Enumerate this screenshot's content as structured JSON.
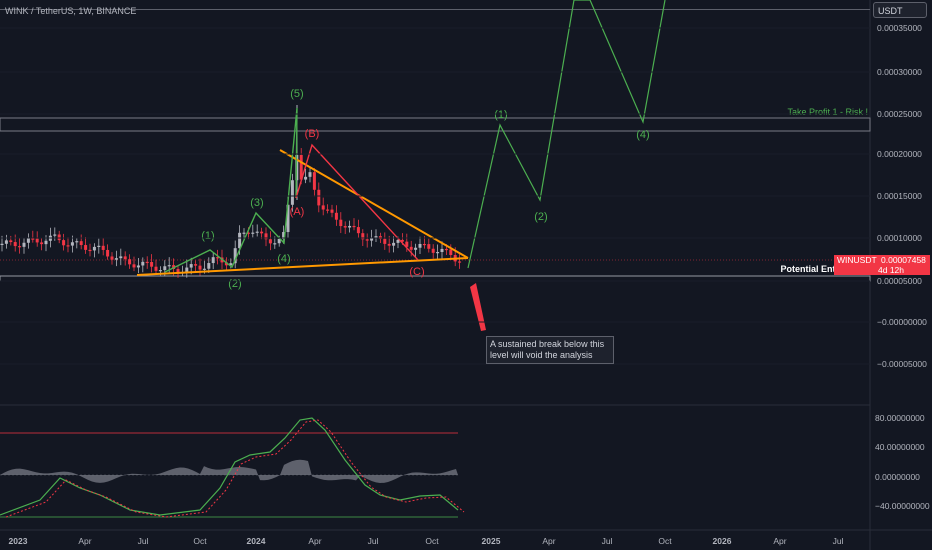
{
  "header": {
    "title": "WINK / TetherUS, 1W, BINANCE"
  },
  "currency_badge": "USDT",
  "colors": {
    "background": "#131722",
    "grid": "#1e222d",
    "up": "#b2b5be",
    "down": "#f23645",
    "wave_green": "#4caf50",
    "wave_red": "#f23645",
    "triangle_orange": "#ff9800",
    "macd_green": "#4caf50",
    "macd_signal": "#f23645",
    "histogram": "#787b86"
  },
  "main_axis_labels": [
    "0.00035000",
    "0.00030000",
    "0.00025000",
    "0.00020000",
    "0.00015000",
    "0.00010000",
    "0.00005000",
    "−0.00000000",
    "−0.00005000"
  ],
  "indicator_axis_labels": [
    "80.00000000",
    "40.00000000",
    "0.00000000",
    "−40.00000000"
  ],
  "time_labels": [
    "2023",
    "Apr",
    "Jul",
    "Oct",
    "2024",
    "Apr",
    "Jul",
    "Oct",
    "2025",
    "Apr",
    "Jul",
    "Oct",
    "2026",
    "Apr",
    "Jul"
  ],
  "wave_labels": {
    "w1": "(1)",
    "w2": "(2)",
    "w3": "(3)",
    "w4": "(4)",
    "w5": "(5)",
    "a": "(A)",
    "b": "(B)",
    "c": "(C)",
    "p1": "(1)",
    "p2": "(2)",
    "p4": "(4)"
  },
  "annotations": {
    "take_profit": "Take Profit 1 - Risk !",
    "entry_zone": "Potential Entry Zone",
    "callout": "A sustained break below this level will void the analysis"
  },
  "price_tag": {
    "symbol": "WINUSDT",
    "price": "0.00007458",
    "countdown": "4d 12h"
  },
  "chart_data": {
    "type": "line",
    "title": "WINK / TetherUS, 1W, BINANCE",
    "ylim": [
      -7.5e-05,
      0.00038
    ],
    "price_series_approx": [
      {
        "x": "2023-01",
        "y": 9e-05
      },
      {
        "x": "2023-03",
        "y": 9.5e-05
      },
      {
        "x": "2023-06",
        "y": 7.8e-05
      },
      {
        "x": "2023-09",
        "y": 6.8e-05
      },
      {
        "x": "2023-11",
        "y": 0.000105
      },
      {
        "x": "2024-01",
        "y": 0.000115
      },
      {
        "x": "2024-03",
        "y": 0.00026
      },
      {
        "x": "2024-05",
        "y": 0.00016
      },
      {
        "x": "2024-08",
        "y": 9.5e-05
      },
      {
        "x": "2024-11",
        "y": 7.5e-05
      }
    ],
    "zones": {
      "take_profit_1": [
        0.000228,
        0.000247
      ],
      "entry_zone": [
        5.3e-05,
        5.8e-05
      ]
    },
    "projection": [
      {
        "label": "(1)",
        "y": 0.000232
      },
      {
        "label": "(2)",
        "y": 0.000142
      },
      {
        "label": "(4)",
        "y": 0.000243
      }
    ],
    "indicator_levels": [
      80,
      40,
      0,
      -40
    ]
  }
}
